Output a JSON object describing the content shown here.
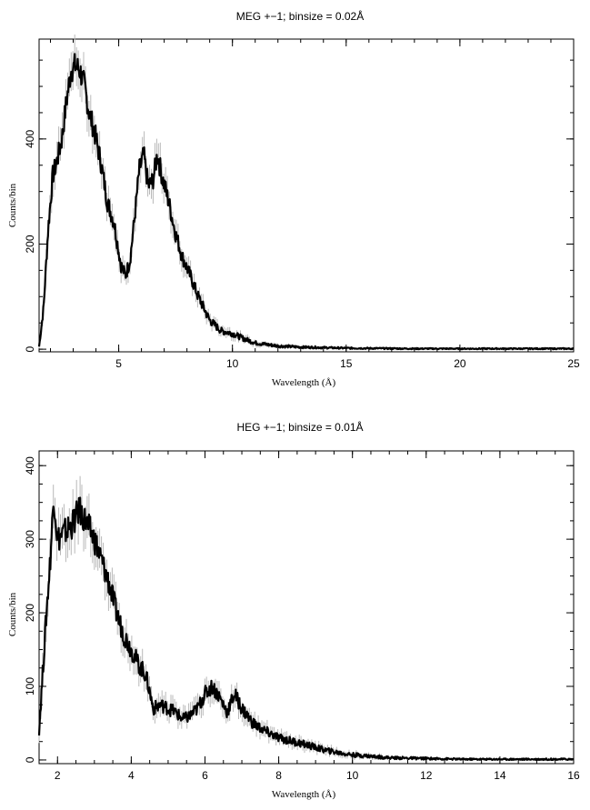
{
  "chart_data": [
    {
      "type": "line",
      "title": "MEG +−1; binsize = 0.02Å",
      "xlabel": "Wavelength (Å)",
      "ylabel": "Counts/bin",
      "xlim": [
        1.5,
        25
      ],
      "ylim": [
        -5,
        590
      ],
      "xticks": [
        5,
        10,
        15,
        20,
        25
      ],
      "yticks": [
        0,
        200,
        400
      ],
      "grid": false,
      "series": [
        {
          "x": [
            1.5,
            1.7,
            1.9,
            2.1,
            2.3,
            2.5,
            2.7,
            2.9,
            3.1,
            3.3,
            3.5,
            3.7,
            3.9,
            4.2,
            4.5,
            4.8,
            5.1,
            5.3,
            5.5,
            5.7,
            5.9,
            6.1,
            6.3,
            6.5,
            6.7,
            6.9,
            7.2,
            7.5,
            7.8,
            8.1,
            8.5,
            9.0,
            9.5,
            10.0,
            10.5,
            11,
            12,
            13,
            15,
            18,
            22,
            25
          ],
          "values": [
            5,
            80,
            230,
            330,
            360,
            400,
            470,
            530,
            540,
            530,
            500,
            450,
            420,
            360,
            280,
            240,
            160,
            140,
            170,
            250,
            340,
            370,
            310,
            320,
            370,
            330,
            280,
            220,
            175,
            145,
            100,
            55,
            35,
            30,
            20,
            12,
            6,
            4,
            2,
            1,
            1,
            1
          ]
        }
      ]
    },
    {
      "type": "line",
      "title": "HEG +−1; binsize = 0.01Å",
      "xlabel": "Wavelength (Å)",
      "ylabel": "Counts/bin",
      "xlim": [
        1.5,
        16
      ],
      "ylim": [
        -5,
        420
      ],
      "xticks": [
        2,
        4,
        6,
        8,
        10,
        12,
        14,
        16
      ],
      "yticks": [
        0,
        100,
        200,
        300,
        400
      ],
      "grid": false,
      "series": [
        {
          "x": [
            1.5,
            1.6,
            1.7,
            1.8,
            1.9,
            2.0,
            2.2,
            2.4,
            2.6,
            2.8,
            3.0,
            3.2,
            3.4,
            3.6,
            3.8,
            4.0,
            4.2,
            4.4,
            4.6,
            4.8,
            5.0,
            5.2,
            5.4,
            5.6,
            5.8,
            6.0,
            6.2,
            6.4,
            6.6,
            6.8,
            7.0,
            7.3,
            7.6,
            8.0,
            8.4,
            8.8,
            9.2,
            9.6,
            10.0,
            10.5,
            11,
            12,
            13,
            14,
            16
          ],
          "values": [
            40,
            120,
            200,
            270,
            360,
            300,
            310,
            320,
            340,
            320,
            300,
            270,
            240,
            200,
            170,
            150,
            130,
            115,
            70,
            75,
            70,
            65,
            55,
            60,
            70,
            90,
            100,
            85,
            65,
            90,
            70,
            50,
            40,
            30,
            25,
            20,
            14,
            10,
            7,
            5,
            3,
            2,
            1,
            1,
            1
          ]
        }
      ]
    }
  ]
}
